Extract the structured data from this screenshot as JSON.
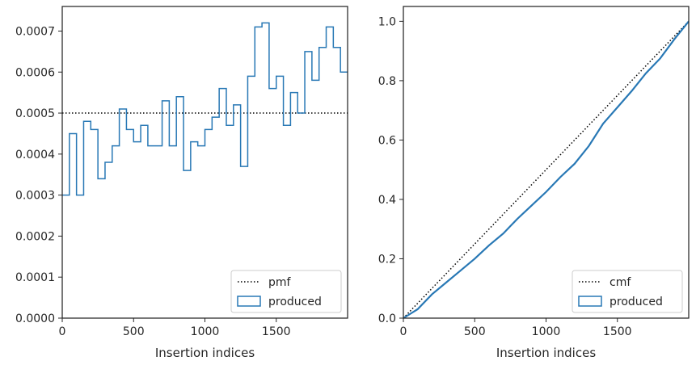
{
  "chart_data": [
    {
      "type": "step",
      "xlabel": "Insertion indices",
      "ylabel": "",
      "xlim": [
        0,
        2000
      ],
      "ylim": [
        0,
        0.00076
      ],
      "xticks": [
        0,
        500,
        1000,
        1500
      ],
      "xtick_labels": [
        "0",
        "500",
        "1000",
        "1500"
      ],
      "yticks": [
        0,
        0.0001,
        0.0002,
        0.0003,
        0.0004,
        0.0005,
        0.0006,
        0.0007
      ],
      "ytick_labels": [
        "0.0000",
        "0.0001",
        "0.0002",
        "0.0003",
        "0.0004",
        "0.0005",
        "0.0006",
        "0.0007"
      ],
      "grid": false,
      "legend_position": "lower-right",
      "series": [
        {
          "name": "pmf",
          "style": "dotted",
          "color": "#000000",
          "x": [
            0,
            2000
          ],
          "y": [
            0.0005,
            0.0005
          ]
        },
        {
          "name": "produced",
          "style": "step",
          "color": "#2878b5",
          "bin_width": 50,
          "x_start": 0,
          "values": [
            0.0003,
            0.00045,
            0.0003,
            0.00048,
            0.00046,
            0.00034,
            0.00038,
            0.00042,
            0.00051,
            0.00046,
            0.00043,
            0.00047,
            0.00042,
            0.00042,
            0.00053,
            0.00042,
            0.00054,
            0.00036,
            0.00043,
            0.00042,
            0.00046,
            0.00049,
            0.00056,
            0.00047,
            0.00052,
            0.00037,
            0.00059,
            0.00071,
            0.00072,
            0.00056,
            0.00059,
            0.00047,
            0.00055,
            0.0005,
            0.00065,
            0.00058,
            0.00066,
            0.00071,
            0.00066,
            0.0006
          ]
        }
      ]
    },
    {
      "type": "line",
      "xlabel": "Insertion indices",
      "ylabel": "",
      "xlim": [
        0,
        2000
      ],
      "ylim": [
        0,
        1.05
      ],
      "xticks": [
        0,
        500,
        1000,
        1500
      ],
      "xtick_labels": [
        "0",
        "500",
        "1000",
        "1500"
      ],
      "yticks": [
        0,
        0.2,
        0.4,
        0.6,
        0.8,
        1.0
      ],
      "ytick_labels": [
        "0.0",
        "0.2",
        "0.4",
        "0.6",
        "0.8",
        "1.0"
      ],
      "grid": false,
      "legend_position": "lower-right",
      "series": [
        {
          "name": "cmf",
          "style": "dotted",
          "color": "#000000",
          "x": [
            0,
            2000
          ],
          "y": [
            0,
            1.0
          ]
        },
        {
          "name": "produced",
          "style": "solid",
          "color": "#2878b5",
          "x": [
            0,
            100,
            200,
            300,
            400,
            500,
            600,
            700,
            800,
            900,
            1000,
            1100,
            1200,
            1300,
            1400,
            1500,
            1600,
            1700,
            1800,
            1900,
            2000
          ],
          "y": [
            0.0,
            0.03,
            0.08,
            0.12,
            0.16,
            0.2,
            0.245,
            0.285,
            0.335,
            0.38,
            0.425,
            0.475,
            0.52,
            0.58,
            0.655,
            0.71,
            0.765,
            0.825,
            0.875,
            0.94,
            1.0
          ]
        }
      ]
    }
  ]
}
